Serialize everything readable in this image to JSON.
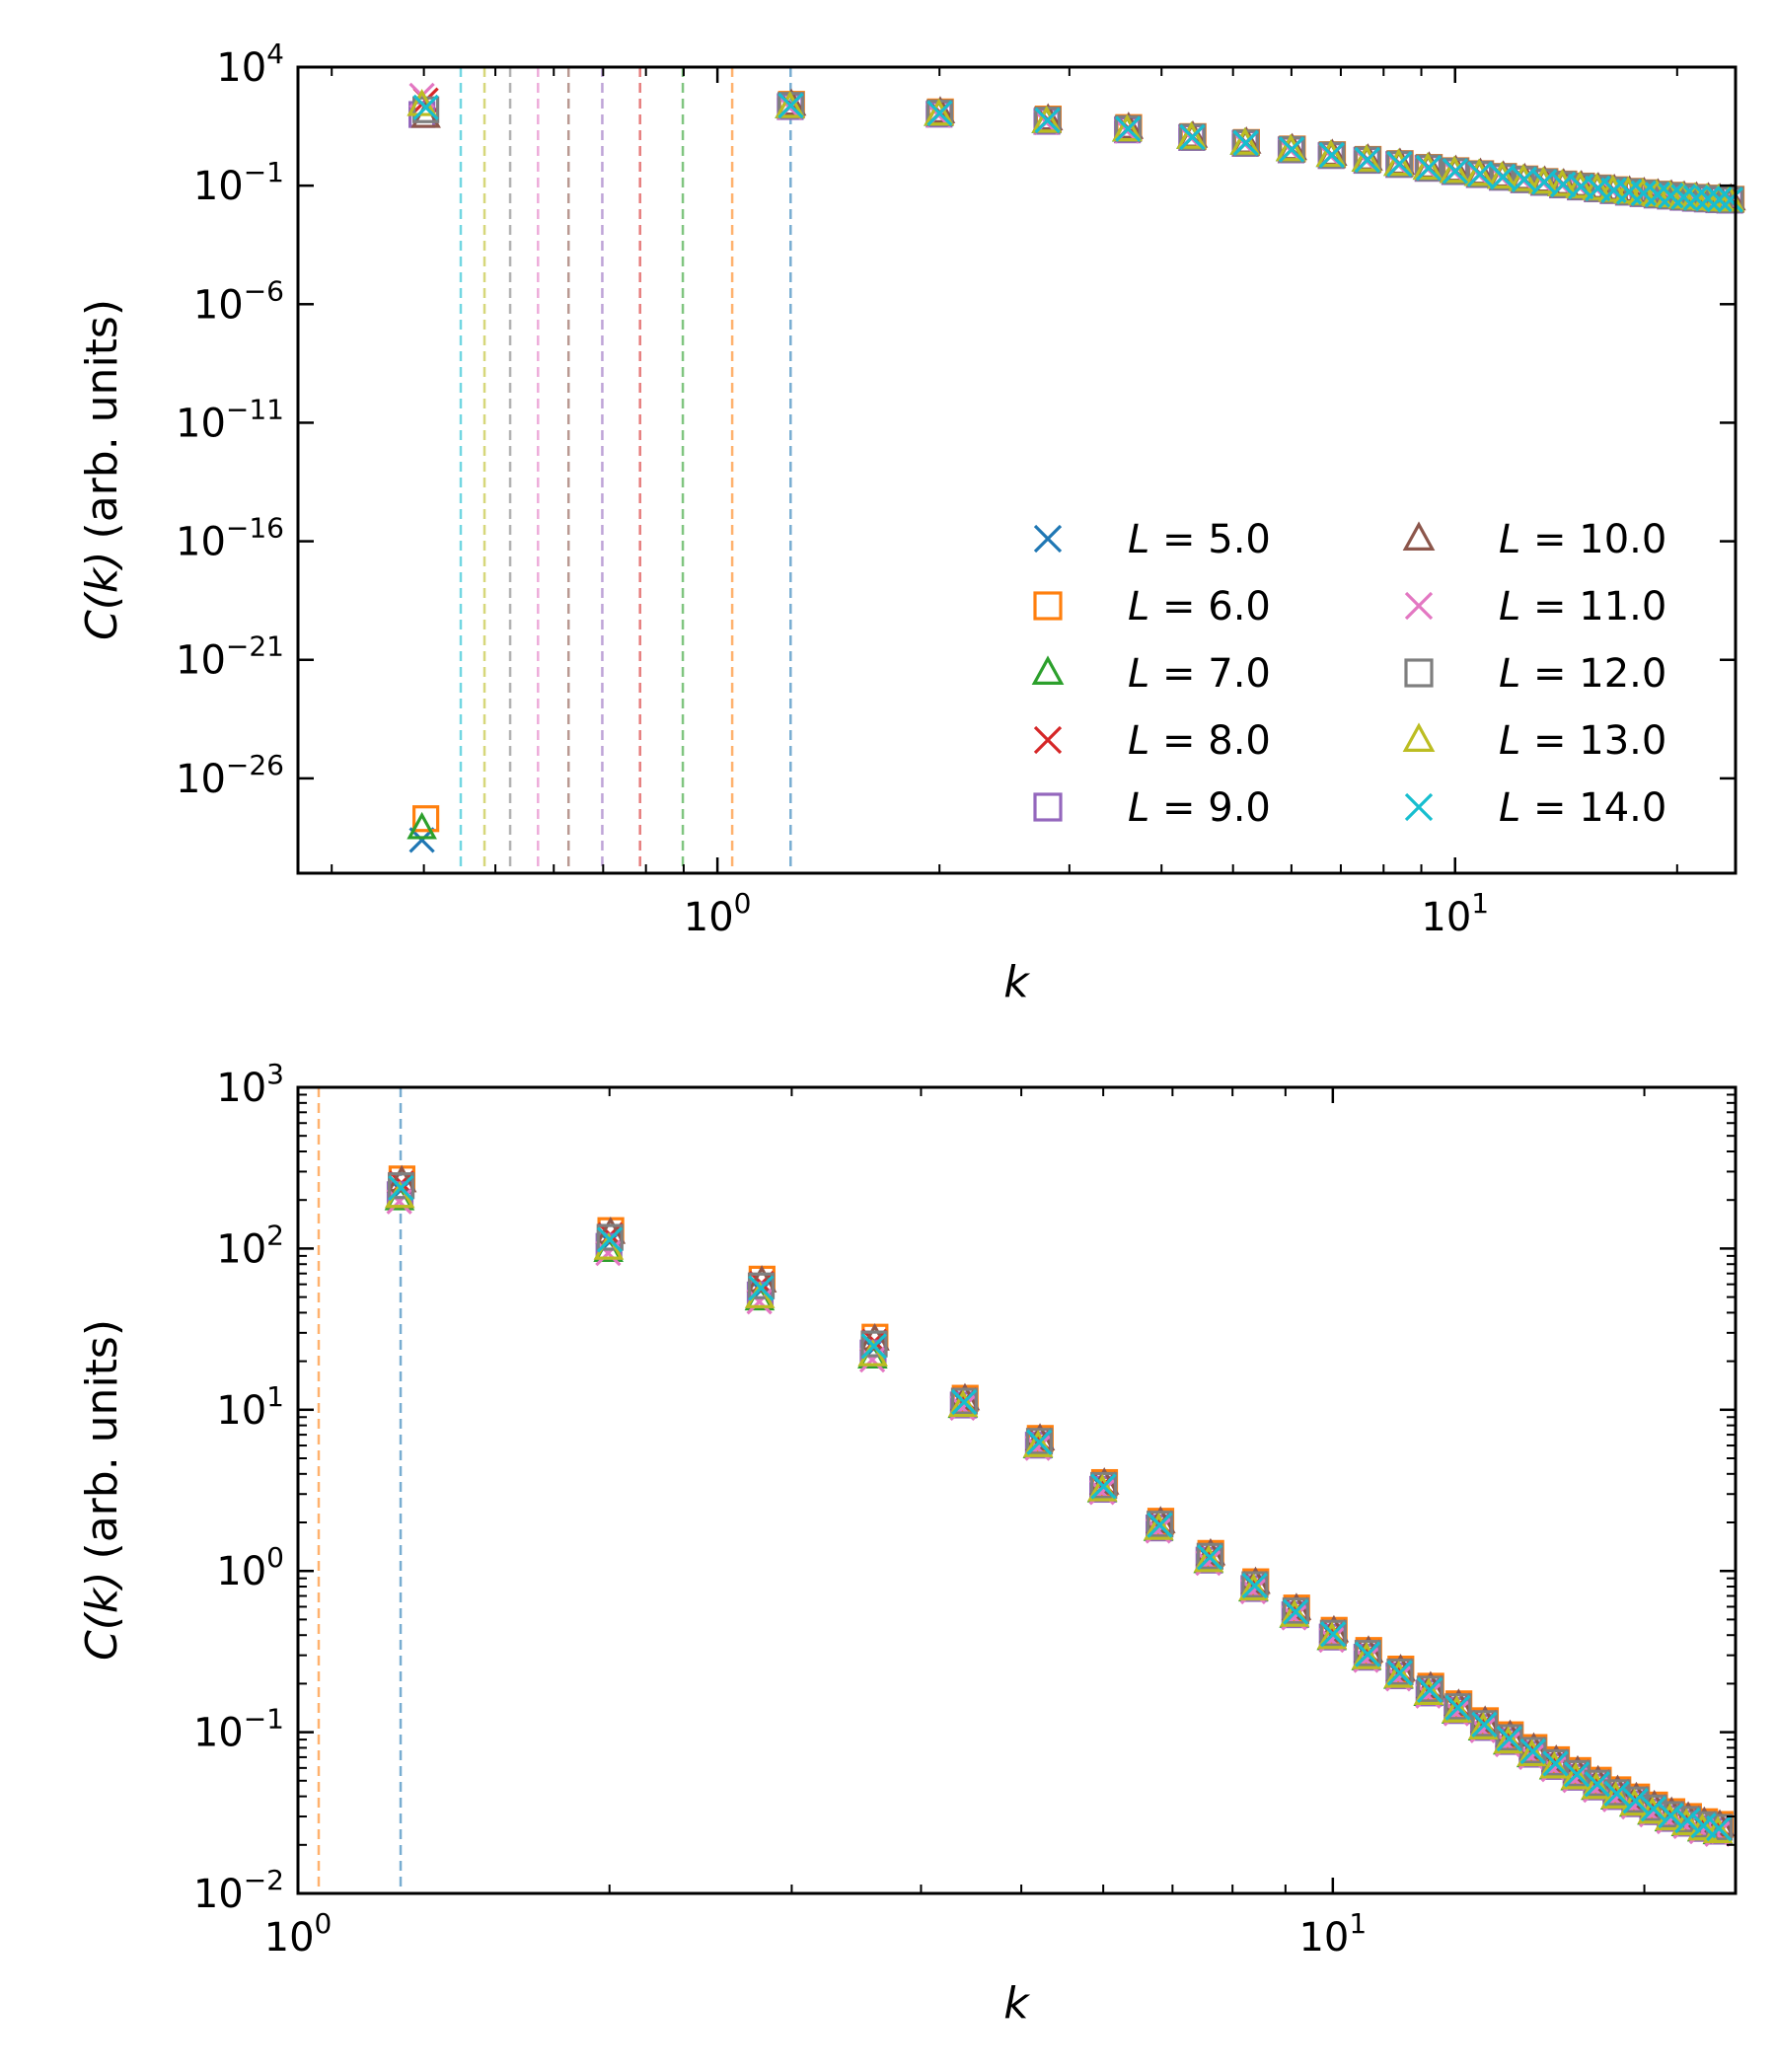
{
  "chart_data": [
    {
      "type": "scatter",
      "title": "",
      "xscale": "log",
      "yscale": "log",
      "xlabel": "k",
      "ylabel": "(arb. units)",
      "ylabel_symbol": "C(k)",
      "xlim": [
        0.27,
        24.0
      ],
      "ylim_exp": [
        -30,
        4
      ],
      "yticks": [
        {
          "exp": 4,
          "label": "10",
          "sup": "4"
        },
        {
          "exp": -1,
          "label": "10",
          "sup": "−1"
        },
        {
          "exp": -6,
          "label": "10",
          "sup": "−6"
        },
        {
          "exp": -11,
          "label": "10",
          "sup": "−11"
        },
        {
          "exp": -16,
          "label": "10",
          "sup": "−16"
        },
        {
          "exp": -21,
          "label": "10",
          "sup": "−21"
        },
        {
          "exp": -26,
          "label": "10",
          "sup": "−26"
        }
      ],
      "xticks": [
        {
          "value": 1,
          "label": "10",
          "sup": "0"
        },
        {
          "value": 10,
          "label": "10",
          "sup": "1"
        }
      ],
      "vlines": [
        {
          "x": 1.2566,
          "series": 0
        },
        {
          "x": 1.0472,
          "series": 1
        },
        {
          "x": 0.8976,
          "series": 2
        },
        {
          "x": 0.7854,
          "series": 3
        },
        {
          "x": 0.6981,
          "series": 4
        },
        {
          "x": 0.6283,
          "series": 5
        },
        {
          "x": 0.5712,
          "series": 6
        },
        {
          "x": 0.5236,
          "series": 7
        },
        {
          "x": 0.4833,
          "series": 8
        },
        {
          "x": 0.4488,
          "series": 9
        }
      ],
      "low_k_points": [
        {
          "k": 0.4,
          "series": 0,
          "log10C": -28.6
        },
        {
          "k": 0.4,
          "series": 1,
          "log10C": -27.7
        },
        {
          "k": 0.4,
          "series": 2,
          "log10C": -28.1
        },
        {
          "k": 0.4,
          "series": 3,
          "log10C": 2.6
        },
        {
          "k": 0.4,
          "series": 4,
          "log10C": 2.0
        },
        {
          "k": 0.4,
          "series": 5,
          "log10C": 1.9
        },
        {
          "k": 0.4,
          "series": 6,
          "log10C": 2.8
        },
        {
          "k": 0.4,
          "series": 7,
          "log10C": 2.2
        },
        {
          "k": 0.4,
          "series": 8,
          "log10C": 2.4
        },
        {
          "k": 0.4,
          "series": 9,
          "log10C": 2.3
        }
      ],
      "legend_location": "lower-right"
    },
    {
      "type": "scatter",
      "title": "",
      "xscale": "log",
      "yscale": "log",
      "xlabel": "k",
      "ylabel": "(arb. units)",
      "ylabel_symbol": "C(k)",
      "xlim": [
        1.0,
        24.5
      ],
      "ylim_exp": [
        -2,
        3
      ],
      "yticks": [
        {
          "exp": 3,
          "label": "10",
          "sup": "3"
        },
        {
          "exp": 2,
          "label": "10",
          "sup": "2"
        },
        {
          "exp": 1,
          "label": "10",
          "sup": "1"
        },
        {
          "exp": 0,
          "label": "10",
          "sup": "0"
        },
        {
          "exp": -1,
          "label": "10",
          "sup": "−1"
        },
        {
          "exp": -2,
          "label": "10",
          "sup": "−2"
        }
      ],
      "xticks": [
        {
          "value": 1,
          "label": "10",
          "sup": "0"
        },
        {
          "value": 10,
          "label": "10",
          "sup": "1"
        }
      ],
      "vlines": [
        {
          "x": 1.0472,
          "series": 1
        },
        {
          "x": 1.2566,
          "series": 0
        }
      ]
    }
  ],
  "series": [
    {
      "name": "L = 5.0",
      "symbol": "L",
      "value": "5.0",
      "marker": "x",
      "color": "#1f77b4"
    },
    {
      "name": "L = 6.0",
      "symbol": "L",
      "value": "6.0",
      "marker": "square",
      "color": "#ff7f0e"
    },
    {
      "name": "L = 7.0",
      "symbol": "L",
      "value": "7.0",
      "marker": "triangle",
      "color": "#2ca02c"
    },
    {
      "name": "L = 8.0",
      "symbol": "L",
      "value": "8.0",
      "marker": "x",
      "color": "#d62728"
    },
    {
      "name": "L = 9.0",
      "symbol": "L",
      "value": "9.0",
      "marker": "square",
      "color": "#9467bd"
    },
    {
      "name": "L = 10.0",
      "symbol": "L",
      "value": "10.0",
      "marker": "triangle",
      "color": "#8c564b"
    },
    {
      "name": "L = 11.0",
      "symbol": "L",
      "value": "11.0",
      "marker": "x",
      "color": "#e377c2"
    },
    {
      "name": "L = 12.0",
      "symbol": "L",
      "value": "12.0",
      "marker": "square",
      "color": "#7f7f7f"
    },
    {
      "name": "L = 13.0",
      "symbol": "L",
      "value": "13.0",
      "marker": "triangle",
      "color": "#bcbd22"
    },
    {
      "name": "L = 14.0",
      "symbol": "L",
      "value": "14.0",
      "marker": "x",
      "color": "#17becf"
    }
  ],
  "shared_points": {
    "k": [
      1.2566,
      2.0,
      2.8,
      3.6,
      4.4,
      5.2,
      6.0,
      6.8,
      7.6,
      8.4,
      9.2,
      10.0,
      10.8,
      11.6,
      12.4,
      13.2,
      14.0,
      14.8,
      15.6,
      16.4,
      17.2,
      18.0,
      18.8,
      19.6,
      20.4,
      21.2,
      22.0,
      22.8,
      23.6
    ],
    "C": [
      230,
      110,
      55,
      24,
      11,
      6.2,
      3.3,
      1.9,
      1.2,
      0.8,
      0.55,
      0.4,
      0.3,
      0.23,
      0.18,
      0.14,
      0.11,
      0.09,
      0.075,
      0.063,
      0.054,
      0.047,
      0.041,
      0.037,
      0.033,
      0.03,
      0.028,
      0.026,
      0.025
    ],
    "series_spread": [
      0.0,
      0.05,
      -0.04,
      0.03,
      -0.02,
      0.04,
      -0.05,
      0.02,
      -0.03,
      0.01
    ]
  }
}
